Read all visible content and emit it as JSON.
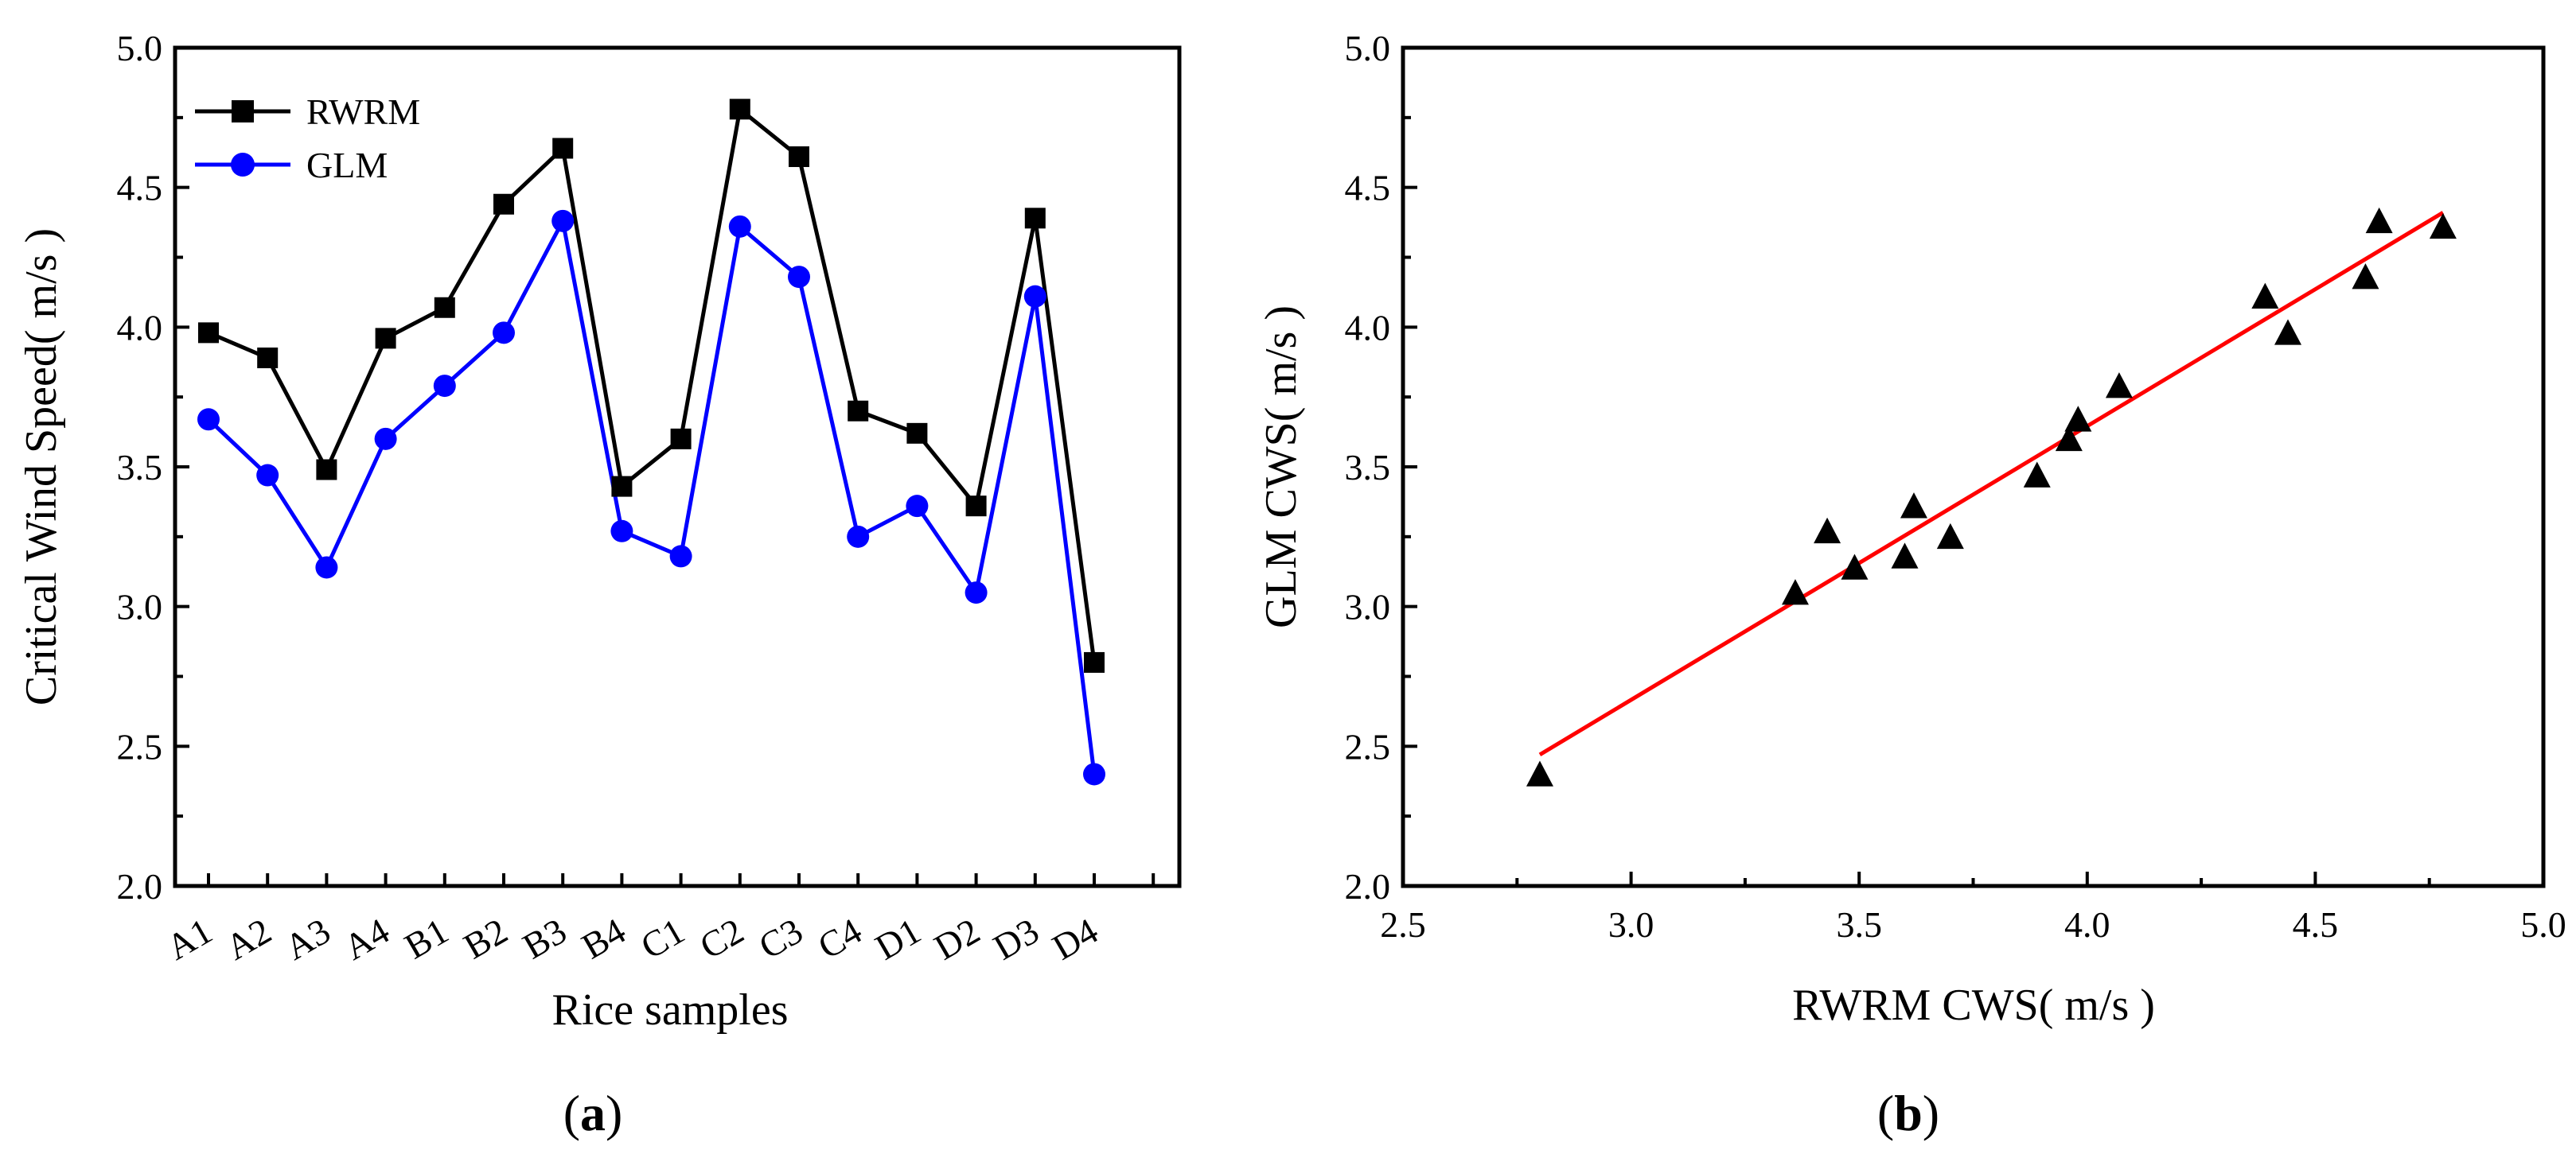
{
  "chart_data": [
    {
      "panel_label": "a",
      "type": "line",
      "xlabel": "Rice samples",
      "ylabel": "Critical Wind Speed( m/s )",
      "ylim": [
        2.0,
        5.0
      ],
      "y_ticks": [
        "2.0",
        "2.5",
        "3.0",
        "3.5",
        "4.0",
        "4.5",
        "5.0"
      ],
      "categories": [
        "A1",
        "A2",
        "A3",
        "A4",
        "B1",
        "B2",
        "B3",
        "B4",
        "C1",
        "C2",
        "C3",
        "C4",
        "D1",
        "D2",
        "D3",
        "D4"
      ],
      "legend_position": "top-left",
      "series": [
        {
          "name": "RWRM",
          "marker": "square",
          "color": "#000000",
          "values": [
            3.98,
            3.89,
            3.49,
            3.96,
            4.07,
            4.44,
            4.64,
            3.43,
            3.6,
            4.78,
            4.61,
            3.7,
            3.62,
            3.36,
            4.39,
            2.8
          ]
        },
        {
          "name": "GLM",
          "marker": "circle",
          "color": "#0000ff",
          "values": [
            3.67,
            3.47,
            3.14,
            3.6,
            3.79,
            3.98,
            4.38,
            3.27,
            3.18,
            4.36,
            4.18,
            3.25,
            3.36,
            3.05,
            4.11,
            2.4
          ]
        }
      ]
    },
    {
      "panel_label": "b",
      "type": "scatter",
      "xlabel": "RWRM CWS( m/s )",
      "ylabel": "GLM CWS( m/s )",
      "xlim": [
        2.5,
        5.0
      ],
      "ylim": [
        2.0,
        5.0
      ],
      "x_ticks": [
        "2.5",
        "3.0",
        "3.5",
        "4.0",
        "4.5",
        "5.0"
      ],
      "y_ticks": [
        "2.0",
        "2.5",
        "3.0",
        "3.5",
        "4.0",
        "4.5",
        "5.0"
      ],
      "marker": "triangle",
      "x": [
        3.98,
        3.89,
        3.49,
        3.96,
        4.07,
        4.44,
        4.64,
        3.43,
        3.6,
        4.78,
        4.61,
        3.7,
        3.62,
        3.36,
        4.39,
        2.8
      ],
      "y": [
        3.67,
        3.47,
        3.14,
        3.6,
        3.79,
        3.98,
        4.38,
        3.27,
        3.18,
        4.36,
        4.18,
        3.25,
        3.36,
        3.05,
        4.11,
        2.4
      ],
      "fit_line": {
        "color": "#ff0000",
        "from": [
          2.8,
          2.47
        ],
        "to": [
          4.78,
          4.41
        ]
      }
    }
  ]
}
